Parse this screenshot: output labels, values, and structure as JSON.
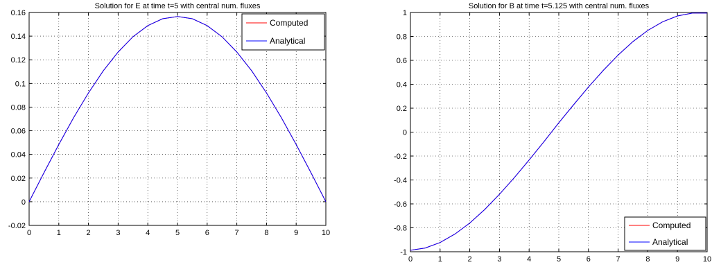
{
  "figure": {
    "background": "#ffffff"
  },
  "chart_data": [
    {
      "type": "line",
      "title": "Solution for E at time t=5 with central num. fluxes",
      "xlabel": "",
      "ylabel": "",
      "xlim": [
        0,
        10
      ],
      "ylim": [
        -0.02,
        0.16
      ],
      "xticks": [
        0,
        1,
        2,
        3,
        4,
        5,
        6,
        7,
        8,
        9,
        10
      ],
      "yticks": [
        -0.02,
        0,
        0.02,
        0.04,
        0.06,
        0.08,
        0.1,
        0.12,
        0.14,
        0.16
      ],
      "ytick_labels": [
        "-0.02",
        "0",
        "0.02",
        "0.04",
        "0.06",
        "0.08",
        "0.1",
        "0.12",
        "0.14",
        "0.16"
      ],
      "grid": true,
      "legend_position": "top-right",
      "series": [
        {
          "name": "Computed",
          "color": "#ff0000",
          "x": [
            0,
            0.5,
            1,
            1.5,
            2,
            2.5,
            3,
            3.5,
            4,
            4.5,
            5,
            5.5,
            6,
            6.5,
            7,
            7.5,
            8,
            8.5,
            9,
            9.5,
            10
          ],
          "y": [
            0,
            0.0245,
            0.0484,
            0.0711,
            0.092,
            0.1107,
            0.1266,
            0.1395,
            0.1489,
            0.1547,
            0.1566,
            0.1547,
            0.1489,
            0.1395,
            0.1266,
            0.1107,
            0.092,
            0.0711,
            0.0484,
            0.0245,
            0
          ]
        },
        {
          "name": "Analytical",
          "color": "#0000ff",
          "x": [
            0,
            0.5,
            1,
            1.5,
            2,
            2.5,
            3,
            3.5,
            4,
            4.5,
            5,
            5.5,
            6,
            6.5,
            7,
            7.5,
            8,
            8.5,
            9,
            9.5,
            10
          ],
          "y": [
            0,
            0.0245,
            0.0484,
            0.0711,
            0.092,
            0.1107,
            0.1266,
            0.1395,
            0.1489,
            0.1547,
            0.1566,
            0.1547,
            0.1489,
            0.1395,
            0.1266,
            0.1107,
            0.092,
            0.0711,
            0.0484,
            0.0245,
            0
          ]
        }
      ]
    },
    {
      "type": "line",
      "title": "Solution for B at time t=5.125 with central num. fluxes",
      "xlabel": "",
      "ylabel": "",
      "xlim": [
        0,
        10
      ],
      "ylim": [
        -1,
        1
      ],
      "xticks": [
        0,
        1,
        2,
        3,
        4,
        5,
        6,
        7,
        8,
        9,
        10
      ],
      "yticks": [
        -1,
        -0.8,
        -0.6,
        -0.4,
        -0.2,
        0,
        0.2,
        0.4,
        0.6,
        0.8,
        1
      ],
      "ytick_labels": [
        "-1",
        "-0.8",
        "-0.6",
        "-0.4",
        "-0.2",
        "0",
        "0.2",
        "0.4",
        "0.6",
        "0.8",
        "1"
      ],
      "grid": true,
      "legend_position": "bottom-right",
      "series": [
        {
          "name": "Computed",
          "color": "#ff0000",
          "x": [
            0,
            0.5,
            1,
            1.5,
            2,
            2.5,
            3,
            3.5,
            4,
            4.5,
            5,
            5.5,
            6,
            6.5,
            7,
            7.5,
            8,
            8.5,
            9,
            9.5,
            10
          ],
          "y": [
            -0.988,
            -0.969,
            -0.923,
            -0.852,
            -0.76,
            -0.648,
            -0.52,
            -0.381,
            -0.233,
            -0.08,
            0.078,
            0.229,
            0.377,
            0.516,
            0.644,
            0.757,
            0.85,
            0.922,
            0.971,
            0.995,
            0.995
          ]
        },
        {
          "name": "Analytical",
          "color": "#0000ff",
          "x": [
            0,
            0.5,
            1,
            1.5,
            2,
            2.5,
            3,
            3.5,
            4,
            4.5,
            5,
            5.5,
            6,
            6.5,
            7,
            7.5,
            8,
            8.5,
            9,
            9.5,
            10
          ],
          "y": [
            -0.988,
            -0.969,
            -0.923,
            -0.852,
            -0.76,
            -0.648,
            -0.52,
            -0.381,
            -0.233,
            -0.08,
            0.078,
            0.229,
            0.377,
            0.516,
            0.644,
            0.757,
            0.85,
            0.922,
            0.971,
            0.995,
            0.995
          ]
        }
      ]
    }
  ]
}
